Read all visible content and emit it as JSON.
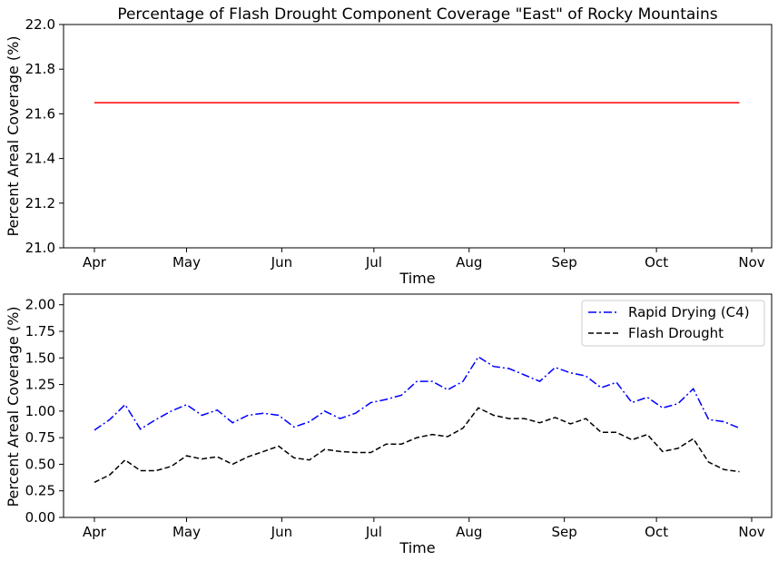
{
  "chart_data": [
    {
      "type": "line",
      "title": "Percentage of Flash Drought Component Coverage \"East\" of Rocky Mountains",
      "xlabel": "Time",
      "ylabel": "Percent Areal Coverage (%)",
      "ylim": [
        21.0,
        22.0
      ],
      "yticks": [
        "21.0",
        "21.2",
        "21.4",
        "21.6",
        "21.8",
        "22.0"
      ],
      "xticks": [
        "Apr",
        "May",
        "Jun",
        "Jul",
        "Aug",
        "Sep",
        "Oct",
        "Nov"
      ],
      "grid": false,
      "series": [
        {
          "color": "#ff0000",
          "style": "solid",
          "x": [
            "Apr 1",
            "Oct 28"
          ],
          "values": [
            21.65,
            21.65
          ]
        }
      ]
    },
    {
      "type": "line",
      "title": "",
      "xlabel": "Time",
      "ylabel": "Percent Areal Coverage (%)",
      "ylim": [
        0.0,
        2.1
      ],
      "yticks": [
        "0.00",
        "0.25",
        "0.50",
        "0.75",
        "1.00",
        "1.25",
        "1.50",
        "1.75",
        "2.00"
      ],
      "xticks": [
        "Apr",
        "May",
        "Jun",
        "Jul",
        "Aug",
        "Sep",
        "Oct",
        "Nov"
      ],
      "grid": false,
      "legend_position": "top-right",
      "dates": [
        "Apr 1",
        "Apr 6",
        "Apr 11",
        "Apr 16",
        "Apr 21",
        "Apr 26",
        "May 1",
        "May 6",
        "May 11",
        "May 16",
        "May 21",
        "May 26",
        "May 31",
        "Jun 5",
        "Jun 10",
        "Jun 15",
        "Jun 20",
        "Jun 25",
        "Jun 30",
        "Jul 5",
        "Jul 10",
        "Jul 15",
        "Jul 20",
        "Jul 25",
        "Jul 30",
        "Aug 4",
        "Aug 9",
        "Aug 14",
        "Aug 19",
        "Aug 24",
        "Aug 29",
        "Sep 3",
        "Sep 8",
        "Sep 13",
        "Sep 18",
        "Sep 23",
        "Sep 28",
        "Oct 3",
        "Oct 8",
        "Oct 13",
        "Oct 18",
        "Oct 23",
        "Oct 28"
      ],
      "series": [
        {
          "name": "Rapid Drying (C4)",
          "color": "#0000ff",
          "style": "dashdot",
          "values": [
            0.82,
            0.92,
            1.06,
            0.83,
            0.92,
            1.0,
            1.06,
            0.96,
            1.01,
            0.89,
            0.96,
            0.98,
            0.96,
            0.85,
            0.9,
            1.0,
            0.93,
            0.98,
            1.08,
            1.11,
            1.15,
            1.28,
            1.28,
            1.2,
            1.28,
            1.51,
            1.42,
            1.4,
            1.34,
            1.28,
            1.41,
            1.36,
            1.33,
            1.22,
            1.27,
            1.08,
            1.13,
            1.03,
            1.07,
            1.21,
            0.92,
            0.9,
            0.84
          ]
        },
        {
          "name": "Flash Drought",
          "color": "#000000",
          "style": "dashed",
          "values": [
            0.33,
            0.4,
            0.54,
            0.44,
            0.44,
            0.48,
            0.58,
            0.55,
            0.57,
            0.5,
            0.57,
            0.62,
            0.67,
            0.56,
            0.54,
            0.64,
            0.62,
            0.61,
            0.61,
            0.69,
            0.69,
            0.75,
            0.78,
            0.76,
            0.84,
            1.03,
            0.96,
            0.93,
            0.93,
            0.89,
            0.94,
            0.88,
            0.93,
            0.8,
            0.8,
            0.73,
            0.78,
            0.62,
            0.65,
            0.74,
            0.52,
            0.45,
            0.43
          ]
        }
      ]
    }
  ]
}
